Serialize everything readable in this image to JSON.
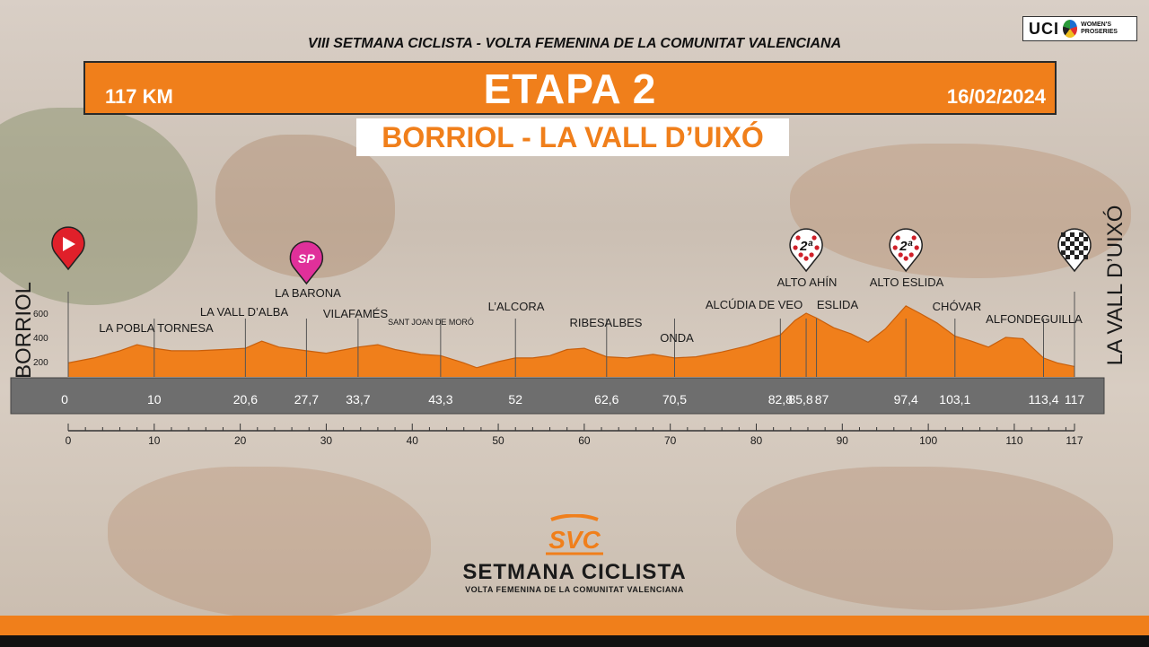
{
  "header": {
    "race_title": "VIII SETMANA CICLISTA - VOLTA FEMENINA DE LA COMUNITAT VALENCIANA",
    "distance": "117 KM",
    "stage": "ETAPA 2",
    "date": "16/02/2024",
    "route": "BORRIOL - LA VALL D’UIXÓ"
  },
  "uci": {
    "label": "UCI",
    "small": "WOMEN'S PROSERIES"
  },
  "brand": {
    "title": "SETMANA CICLISTA",
    "subtitle": "VOLTA FEMENINA DE LA COMUNITAT VALENCIANA",
    "logo_text": "SVC"
  },
  "colors": {
    "accent": "#f07f1b",
    "profile": "#f07f1b",
    "band": "#6e6e6e",
    "kom": "#d0202a",
    "sprint": "#e0309a"
  },
  "icons": {
    "start": "start-play-icon",
    "sprint": "sprint-marker-icon",
    "kom": "kom-polka-dot-icon",
    "finish": "finish-checkered-icon"
  },
  "chart_data": {
    "type": "area",
    "start_label": "BORRIOL",
    "finish_label": "LA VALL D’UIXÓ",
    "xlim": [
      0,
      117
    ],
    "ylim": [
      100,
      700
    ],
    "yticks": [
      200,
      400,
      600
    ],
    "xticks": [
      0,
      10,
      20,
      30,
      40,
      50,
      60,
      70,
      80,
      90,
      100,
      110,
      117
    ],
    "profile": {
      "x": [
        0,
        3,
        6,
        8,
        10,
        12,
        15,
        18,
        20.6,
        22.5,
        24.5,
        27.7,
        30,
        33.7,
        36,
        38,
        41,
        43.3,
        46,
        47.5,
        50,
        52,
        54,
        56,
        58,
        60,
        62.6,
        65,
        68,
        70.5,
        73,
        76,
        79,
        82.8,
        84.5,
        85.8,
        87,
        89,
        91,
        93,
        95,
        97.4,
        99,
        101,
        103.1,
        105,
        107,
        109,
        111,
        113.4,
        115,
        117
      ],
      "y": [
        190,
        230,
        290,
        340,
        310,
        290,
        290,
        300,
        310,
        370,
        320,
        290,
        270,
        320,
        340,
        300,
        260,
        250,
        190,
        150,
        200,
        230,
        230,
        250,
        300,
        310,
        240,
        230,
        260,
        230,
        240,
        280,
        330,
        420,
        540,
        600,
        560,
        480,
        430,
        360,
        470,
        660,
        600,
        520,
        410,
        370,
        320,
        400,
        390,
        230,
        190,
        160
      ]
    },
    "km_labels": [
      "0",
      "10",
      "20,6",
      "27,7",
      "33,7",
      "43,3",
      "52",
      "62,6",
      "70,5",
      "82,8",
      "85,8",
      "87",
      "97,4",
      "103,1",
      "113,4",
      "117"
    ],
    "km_positions": [
      0,
      10,
      20.6,
      27.7,
      33.7,
      43.3,
      52,
      62.6,
      70.5,
      82.8,
      85.8,
      87,
      97.4,
      103.1,
      113.4,
      117
    ],
    "places": [
      {
        "name": "LA POBLA TORNESA",
        "km": 10
      },
      {
        "name": "LA VALL D’ALBA",
        "km": 20.6
      },
      {
        "name": "LA BARONA",
        "km": 27.7
      },
      {
        "name": "VILAFAMÉS",
        "km": 33.7
      },
      {
        "name": "SANT JOAN DE MORÓ",
        "km": 43.3
      },
      {
        "name": "L’ALCORA",
        "km": 52
      },
      {
        "name": "RIBESALBES",
        "km": 62.6
      },
      {
        "name": "ONDA",
        "km": 70.5
      },
      {
        "name": "ALCÚDIA DE VEO",
        "km": 82.8
      },
      {
        "name": "ALTO AHÍN",
        "km": 85.8
      },
      {
        "name": "ESLIDA",
        "km": 87
      },
      {
        "name": "ALTO ESLIDA",
        "km": 97.4
      },
      {
        "name": "CHÓVAR",
        "km": 103.1
      },
      {
        "name": "ALFONDEGUILLA",
        "km": 113.4
      }
    ],
    "markers": [
      {
        "type": "start",
        "km": 0,
        "label": ""
      },
      {
        "type": "sprint",
        "km": 27.7,
        "label": "SP"
      },
      {
        "type": "kom",
        "km": 85.8,
        "label": "2ª"
      },
      {
        "type": "kom",
        "km": 97.4,
        "label": "2ª"
      },
      {
        "type": "finish",
        "km": 117,
        "label": ""
      }
    ]
  }
}
